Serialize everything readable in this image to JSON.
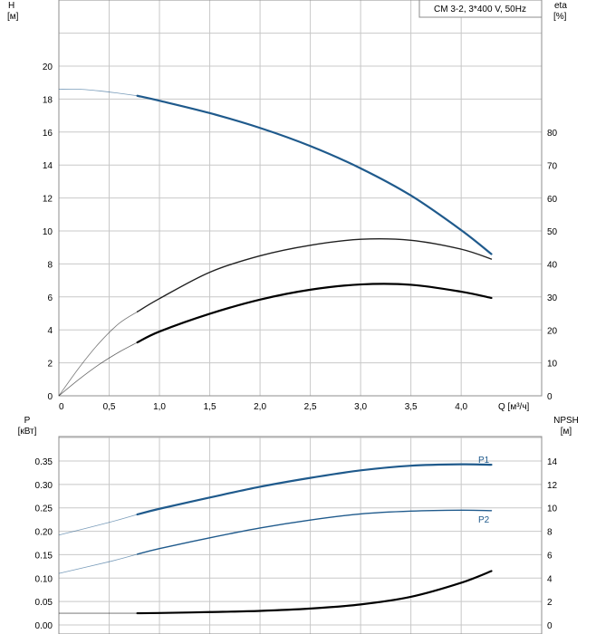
{
  "chart_data": [
    {
      "type": "line",
      "title": "CM 3-2, 3*400 V, 50Hz",
      "xlabel": "Q [м³/ч]",
      "ylabel_left": [
        "H",
        "[м]"
      ],
      "ylabel_right": [
        "eta",
        "[%]"
      ],
      "xlim": [
        0,
        4.8
      ],
      "ylim_left": [
        0,
        22
      ],
      "ylim_right": [
        0,
        80
      ],
      "x_ticks": [
        "0",
        "0,5",
        "1,0",
        "1,5",
        "2,0",
        "2,5",
        "3,0",
        "3,5",
        "4,0"
      ],
      "y_left_ticks": [
        "0",
        "2",
        "4",
        "6",
        "8",
        "10",
        "12",
        "14",
        "16",
        "18",
        "20"
      ],
      "y_right_ticks": [
        "0",
        "10",
        "20",
        "30",
        "40",
        "50",
        "60",
        "70",
        "80"
      ],
      "grid": true,
      "series": [
        {
          "axis": "left",
          "color": "#1f5a8c",
          "operating_range": [
            0.78,
            4.3
          ],
          "x": [
            0,
            0.2,
            0.4,
            0.6,
            0.78,
            1.0,
            1.5,
            2.0,
            2.5,
            3.0,
            3.5,
            4.0,
            4.3
          ],
          "y": [
            18.6,
            18.6,
            18.5,
            18.35,
            18.2,
            17.9,
            17.15,
            16.25,
            15.15,
            13.8,
            12.15,
            10.05,
            8.6
          ]
        },
        {
          "axis": "right",
          "color": "#202020",
          "operating_range": [
            0.78,
            4.3
          ],
          "x": [
            0,
            0.2,
            0.4,
            0.6,
            0.78,
            1.0,
            1.5,
            2.0,
            2.5,
            3.0,
            3.5,
            4.0,
            4.3
          ],
          "y": [
            0,
            8.5,
            16,
            22,
            25.5,
            29.5,
            37.5,
            42.5,
            45.7,
            47.5,
            47.2,
            44.5,
            41.5
          ]
        },
        {
          "axis": "right",
          "color": "#000000",
          "operating_range": [
            0.78,
            4.3
          ],
          "x": [
            0,
            0.2,
            0.4,
            0.6,
            0.78,
            1.0,
            1.5,
            2.0,
            2.5,
            3.0,
            3.5,
            4.0,
            4.3
          ],
          "y": [
            0,
            5,
            9.5,
            13.3,
            16.2,
            19.5,
            24.9,
            29.2,
            32.2,
            33.8,
            33.7,
            31.6,
            29.7
          ]
        }
      ]
    },
    {
      "type": "line",
      "xlim": [
        0,
        4.8
      ],
      "ylabel_left": [
        "P",
        "[кВт]"
      ],
      "ylabel_right": [
        "NPSH",
        "[м]"
      ],
      "ylim_left": [
        0,
        0.4
      ],
      "ylim_right": [
        0,
        16
      ],
      "y_left_ticks": [
        "0.00",
        "0.05",
        "0.10",
        "0.15",
        "0.20",
        "0.25",
        "0.30",
        "0.35"
      ],
      "y_right_ticks": [
        "0",
        "2",
        "4",
        "6",
        "8",
        "10",
        "12",
        "14"
      ],
      "grid": true,
      "series": [
        {
          "name": "P1",
          "axis": "left",
          "color": "#1f5a8c",
          "operating_range": [
            0.78,
            4.3
          ],
          "x": [
            0,
            0.5,
            0.78,
            1.0,
            1.5,
            2.0,
            2.5,
            3.0,
            3.5,
            4.0,
            4.3
          ],
          "y": [
            0.192,
            0.219,
            0.236,
            0.248,
            0.272,
            0.295,
            0.314,
            0.33,
            0.34,
            0.343,
            0.342
          ]
        },
        {
          "name": "P2",
          "axis": "left",
          "color": "#1f5a8c",
          "operating_range": [
            0.78,
            4.3
          ],
          "x": [
            0,
            0.5,
            0.78,
            1.0,
            1.5,
            2.0,
            2.5,
            3.0,
            3.5,
            4.0,
            4.3
          ],
          "y": [
            0.11,
            0.135,
            0.151,
            0.163,
            0.186,
            0.207,
            0.224,
            0.237,
            0.243,
            0.245,
            0.244
          ]
        },
        {
          "axis": "right",
          "color": "#000000",
          "operating_range": [
            0.78,
            4.3
          ],
          "x": [
            0,
            0.5,
            0.78,
            1.0,
            1.5,
            2.0,
            2.5,
            3.0,
            3.5,
            4.0,
            4.3
          ],
          "y": [
            1.0,
            1.0,
            1.0,
            1.02,
            1.1,
            1.2,
            1.4,
            1.75,
            2.4,
            3.6,
            4.6
          ]
        }
      ]
    }
  ]
}
